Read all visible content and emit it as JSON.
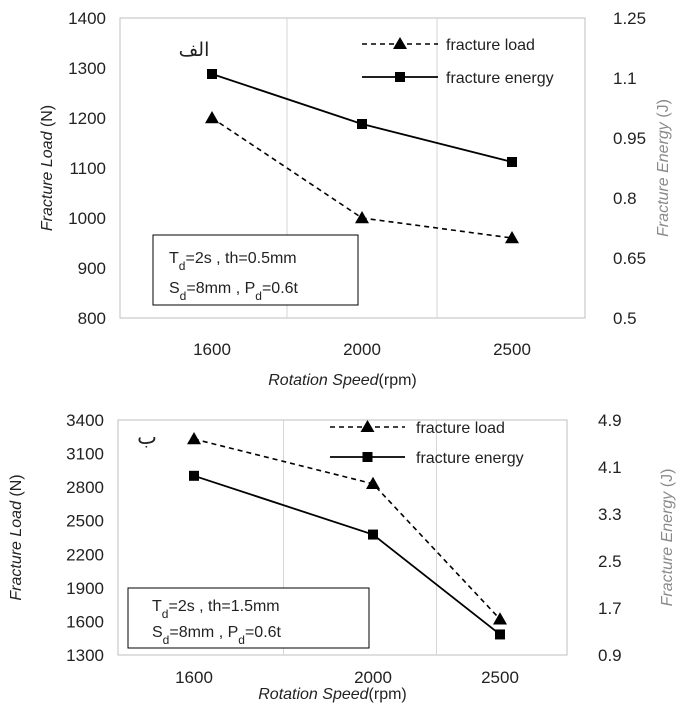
{
  "chart_data": [
    {
      "type": "line",
      "panel_label": "الف",
      "categories": [
        "1600",
        "2000",
        "2500"
      ],
      "xlabel": "Rotation Speed",
      "xlabel_unit": "(rpm)",
      "ylabel": "Fracture Load",
      "ylabel_unit": " (N)",
      "y2label": "Fracture Energy",
      "y2label_unit": " (J)",
      "ylim": [
        800,
        1400
      ],
      "yticks": [
        "1400",
        "1300",
        "1200",
        "1100",
        "1000",
        "900",
        "800"
      ],
      "y2lim": [
        0.5,
        1.25
      ],
      "y2ticks": [
        "1.25",
        "1.1",
        "0.95",
        "0.8",
        "0.65",
        "0.5"
      ],
      "grid": "vertical",
      "legend_position": "top-right",
      "params": [
        "T",
        "d",
        "=2s , th=0.5mm",
        "S",
        "d",
        "=8mm , P",
        "d",
        "=0.6t"
      ],
      "series": [
        {
          "name": "fracture load",
          "axis": "left",
          "marker": "triangle",
          "style": "dashed",
          "values": [
            1200,
            1000,
            960
          ]
        },
        {
          "name": "fracture energy",
          "axis": "right",
          "marker": "square",
          "style": "solid",
          "values": [
            1.11,
            0.985,
            0.89
          ]
        }
      ]
    },
    {
      "type": "line",
      "panel_label": "ب",
      "categories": [
        "1600",
        "2000",
        "2500"
      ],
      "xlabel": "Rotation Speed",
      "xlabel_unit": "(rpm)",
      "ylabel": "Fracture Load",
      "ylabel_unit": " (N)",
      "y2label": "Fracture Energy",
      "y2label_unit": " (J)",
      "ylim": [
        1300,
        3400
      ],
      "yticks": [
        "3400",
        "3100",
        "2800",
        "2500",
        "2200",
        "1900",
        "1600",
        "1300"
      ],
      "y2lim": [
        0.9,
        4.9
      ],
      "y2ticks": [
        "4.9",
        "4.1",
        "3.3",
        "2.5",
        "1.7",
        "0.9"
      ],
      "grid": "vertical",
      "legend_position": "top-right",
      "params": [
        "T",
        "d",
        "=2s , th=1.5mm",
        "S",
        "d",
        "=8mm , P",
        "d",
        "=0.6t"
      ],
      "series": [
        {
          "name": "fracture load",
          "axis": "left",
          "marker": "triangle",
          "style": "dashed",
          "values": [
            3230,
            2830,
            1620
          ]
        },
        {
          "name": "fracture energy",
          "axis": "right",
          "marker": "square",
          "style": "solid",
          "values": [
            3.95,
            2.95,
            1.25
          ]
        }
      ]
    }
  ]
}
